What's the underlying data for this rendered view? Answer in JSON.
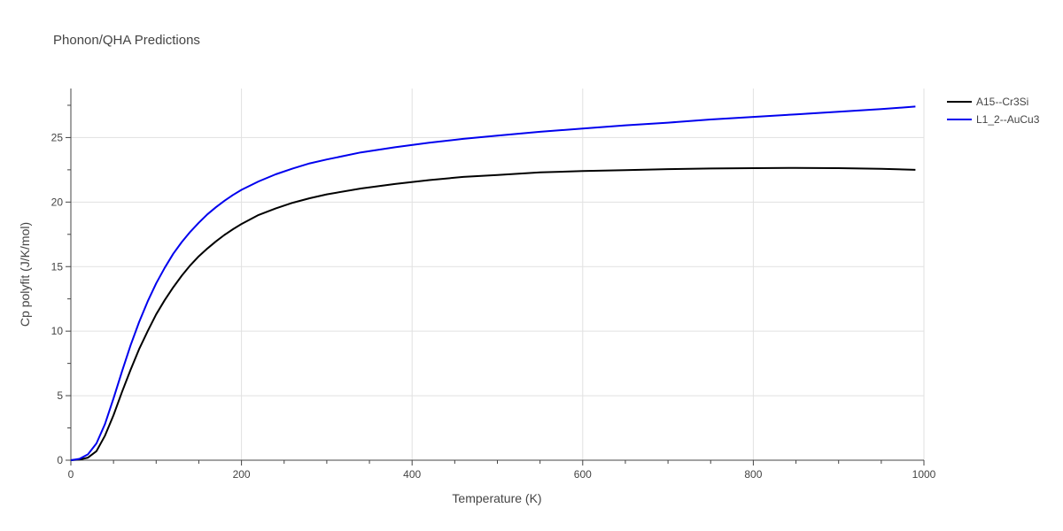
{
  "chart_data": {
    "type": "line",
    "title": "Phonon/QHA Predictions",
    "xlabel": "Temperature (K)",
    "ylabel": "Cp polyfit (J/K/mol)",
    "xlim": [
      0,
      1000
    ],
    "ylim": [
      0,
      28.8
    ],
    "xticks": [
      0,
      200,
      400,
      600,
      800,
      1000
    ],
    "yticks": [
      0,
      5,
      10,
      15,
      20,
      25
    ],
    "grid": true,
    "legend_position": "top-right",
    "series": [
      {
        "name": "A15--Cr3Si",
        "color": "#000000",
        "x": [
          0,
          10,
          20,
          30,
          40,
          50,
          60,
          70,
          80,
          90,
          100,
          110,
          120,
          130,
          140,
          150,
          160,
          170,
          180,
          190,
          200,
          220,
          240,
          260,
          280,
          300,
          340,
          380,
          420,
          460,
          500,
          550,
          600,
          650,
          700,
          750,
          800,
          850,
          900,
          950,
          990
        ],
        "y": [
          0,
          0.05,
          0.2,
          0.7,
          1.9,
          3.5,
          5.3,
          7.0,
          8.6,
          10.0,
          11.3,
          12.4,
          13.4,
          14.3,
          15.1,
          15.8,
          16.4,
          16.95,
          17.45,
          17.9,
          18.3,
          19.0,
          19.5,
          19.95,
          20.3,
          20.6,
          21.05,
          21.4,
          21.7,
          21.95,
          22.1,
          22.3,
          22.4,
          22.48,
          22.55,
          22.6,
          22.63,
          22.65,
          22.63,
          22.58,
          22.5
        ]
      },
      {
        "name": "L1_2--AuCu3",
        "color": "#0000ee",
        "x": [
          0,
          10,
          20,
          30,
          40,
          50,
          60,
          70,
          80,
          90,
          100,
          110,
          120,
          130,
          140,
          150,
          160,
          170,
          180,
          190,
          200,
          220,
          240,
          260,
          280,
          300,
          340,
          380,
          420,
          460,
          500,
          550,
          600,
          650,
          700,
          750,
          800,
          850,
          900,
          950,
          990
        ],
        "y": [
          0,
          0.1,
          0.45,
          1.3,
          2.8,
          4.8,
          6.9,
          8.9,
          10.7,
          12.3,
          13.7,
          14.9,
          16.0,
          16.9,
          17.7,
          18.4,
          19.05,
          19.6,
          20.1,
          20.55,
          20.95,
          21.6,
          22.15,
          22.6,
          23.0,
          23.3,
          23.85,
          24.25,
          24.6,
          24.9,
          25.15,
          25.45,
          25.7,
          25.95,
          26.15,
          26.4,
          26.6,
          26.8,
          27.0,
          27.2,
          27.4
        ]
      }
    ]
  }
}
